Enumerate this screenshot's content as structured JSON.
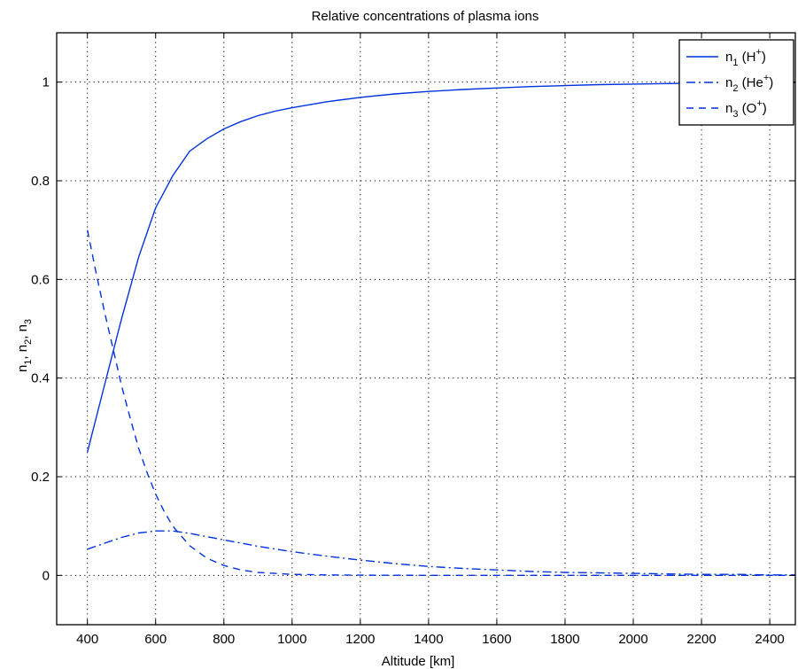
{
  "chart_data": {
    "type": "line",
    "title": "Relative concentrations of plasma ions",
    "xlabel": "Altitude [km]",
    "ylabel": "n1, n2, n3",
    "xlim": [
      310,
      2475
    ],
    "ylim": [
      -0.1,
      1.1
    ],
    "xticks": [
      400,
      600,
      800,
      1000,
      1200,
      1400,
      1600,
      1800,
      2000,
      2200,
      2400
    ],
    "yticks": [
      0,
      0.2,
      0.4,
      0.6,
      0.8,
      1
    ],
    "ytick_labels": [
      "0",
      "0.2",
      "0.4",
      "0.6",
      "0.8",
      "1"
    ],
    "grid": true,
    "legend_position": "top-right",
    "line_color": "#0033dd",
    "series": [
      {
        "name": "n1 (H+)",
        "legend": {
          "base": "n",
          "sub": "1",
          "pre": " (H",
          "sup": "+",
          "post": ")"
        },
        "style": "solid",
        "x": [
          400,
          450,
          500,
          550,
          600,
          650,
          700,
          750,
          800,
          850,
          900,
          950,
          1000,
          1100,
          1200,
          1300,
          1400,
          1500,
          1600,
          1700,
          1800,
          1900,
          2000,
          2100,
          2200,
          2300,
          2400,
          2475
        ],
        "y": [
          0.25,
          0.385,
          0.52,
          0.645,
          0.745,
          0.81,
          0.86,
          0.885,
          0.905,
          0.92,
          0.932,
          0.941,
          0.948,
          0.96,
          0.969,
          0.976,
          0.981,
          0.985,
          0.988,
          0.991,
          0.993,
          0.995,
          0.996,
          0.997,
          0.998,
          0.999,
          0.999,
          0.999
        ]
      },
      {
        "name": "n2 (He+)",
        "legend": {
          "base": "n",
          "sub": "2",
          "pre": " (He",
          "sup": "+",
          "post": ")"
        },
        "style": "dashdot",
        "x": [
          400,
          450,
          500,
          550,
          600,
          650,
          700,
          800,
          900,
          1000,
          1100,
          1200,
          1300,
          1400,
          1500,
          1600,
          1700,
          1800,
          1900,
          2000,
          2100,
          2200,
          2300,
          2400,
          2475
        ],
        "y": [
          0.053,
          0.065,
          0.077,
          0.086,
          0.09,
          0.09,
          0.085,
          0.072,
          0.059,
          0.048,
          0.039,
          0.031,
          0.024,
          0.018,
          0.014,
          0.011,
          0.008,
          0.006,
          0.005,
          0.004,
          0.003,
          0.002,
          0.002,
          0.001,
          0.001
        ]
      },
      {
        "name": "n3 (O+)",
        "legend": {
          "base": "n",
          "sub": "3",
          "pre": " (O",
          "sup": "+",
          "post": ")"
        },
        "style": "dashed",
        "x": [
          400,
          425,
          450,
          475,
          500,
          525,
          550,
          575,
          600,
          625,
          650,
          700,
          750,
          800,
          850,
          900,
          1000,
          1100,
          1200,
          1400,
          1600,
          1800,
          2000,
          2200,
          2400,
          2475
        ],
        "y": [
          0.7,
          0.615,
          0.535,
          0.46,
          0.385,
          0.32,
          0.258,
          0.208,
          0.165,
          0.13,
          0.1,
          0.06,
          0.035,
          0.02,
          0.011,
          0.006,
          0.002,
          0.001,
          0.0005,
          0,
          0,
          0,
          0,
          0,
          0,
          0
        ]
      }
    ]
  }
}
